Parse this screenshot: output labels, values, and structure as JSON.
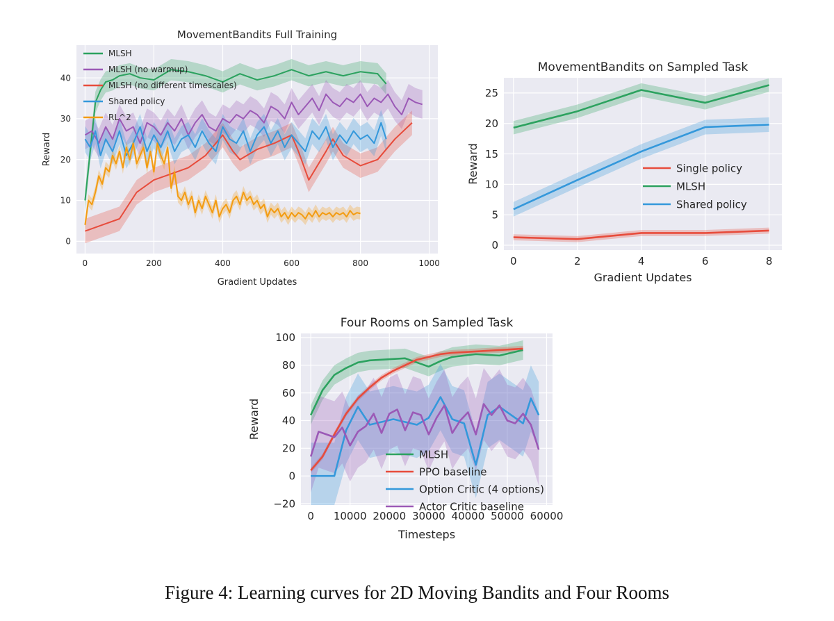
{
  "caption": "Figure 4: Learning curves for 2D Moving Bandits and Four Rooms",
  "colors": {
    "green": "#2ca25f",
    "purple": "#9b59b6",
    "red": "#e74c3c",
    "blue": "#3498db",
    "orange": "#f39c12",
    "plot_bg": "#eaeaf2",
    "grid": "#ffffff"
  },
  "chart_data": [
    {
      "type": "line",
      "title": "MovementBandits Full Training",
      "xlabel": "Gradient Updates",
      "ylabel": "Reward",
      "xlim": [
        -25,
        1025
      ],
      "ylim": [
        -3,
        48
      ],
      "xticks": [
        0,
        200,
        400,
        600,
        800,
        1000
      ],
      "yticks": [
        0,
        10,
        20,
        30,
        40
      ],
      "grid": true,
      "legend": "top-left",
      "series": [
        {
          "name": "MLSH",
          "color": "#2ca25f",
          "x": [
            0,
            15,
            30,
            45,
            60,
            80,
            100,
            130,
            160,
            200,
            250,
            300,
            350,
            400,
            450,
            500,
            550,
            600,
            650,
            700,
            750,
            800,
            850,
            875
          ],
          "y": [
            10,
            22,
            34,
            37,
            39,
            39.5,
            40.5,
            41,
            40,
            39.5,
            42,
            41.5,
            40.5,
            39,
            41,
            39.5,
            40.5,
            42,
            40.5,
            41.5,
            40.5,
            41.5,
            41,
            38.5
          ],
          "band": 2.6
        },
        {
          "name": "MLSH (no warmup)",
          "color": "#9b59b6",
          "x": [
            0,
            20,
            40,
            60,
            80,
            100,
            120,
            140,
            160,
            180,
            200,
            220,
            240,
            260,
            280,
            300,
            320,
            340,
            360,
            380,
            400,
            420,
            440,
            460,
            480,
            500,
            520,
            540,
            560,
            580,
            600,
            620,
            640,
            660,
            680,
            700,
            720,
            740,
            760,
            780,
            800,
            820,
            840,
            860,
            880,
            900,
            920,
            940,
            960,
            980
          ],
          "y": [
            26,
            27,
            24,
            28,
            25,
            30,
            27,
            28,
            24,
            29,
            28,
            26,
            29,
            27,
            30,
            26,
            29,
            31,
            28,
            27,
            30,
            29,
            31,
            30,
            32,
            31,
            29,
            33,
            32,
            30,
            34,
            31,
            33,
            35,
            32,
            36,
            34,
            33,
            35,
            34,
            36,
            33,
            35,
            34,
            36,
            33,
            31,
            35,
            34,
            33.5
          ],
          "band": 3.5
        },
        {
          "name": "MLSH (no different timescales)",
          "color": "#e74c3c",
          "x": [
            0,
            50,
            100,
            150,
            200,
            250,
            300,
            350,
            400,
            430,
            450,
            500,
            550,
            600,
            620,
            650,
            700,
            720,
            750,
            800,
            850,
            900,
            950
          ],
          "y": [
            2.5,
            4,
            5.5,
            12,
            15,
            16.5,
            18,
            21,
            26,
            22,
            20,
            22.5,
            24,
            26,
            22,
            15,
            22,
            25,
            21,
            18.5,
            20,
            25,
            29
          ],
          "band": 3
        },
        {
          "name": "Shared policy",
          "color": "#3498db",
          "x": [
            0,
            15,
            30,
            45,
            60,
            80,
            100,
            120,
            140,
            160,
            180,
            200,
            220,
            240,
            260,
            280,
            300,
            320,
            340,
            360,
            380,
            400,
            420,
            440,
            460,
            480,
            500,
            520,
            540,
            560,
            580,
            600,
            620,
            640,
            660,
            680,
            700,
            720,
            740,
            760,
            780,
            800,
            820,
            840,
            860,
            875
          ],
          "y": [
            25,
            23,
            27,
            21,
            25,
            22,
            27,
            21,
            24,
            28,
            22,
            26,
            23,
            27,
            22,
            25,
            26,
            23,
            27,
            24,
            22,
            28,
            25,
            24,
            27,
            22,
            26,
            28,
            24,
            27,
            23,
            26,
            24,
            22,
            27,
            25,
            28,
            23,
            26,
            24,
            27,
            25,
            26,
            24,
            29,
            25
          ],
          "band": 3.2
        },
        {
          "name": "RL^2",
          "color": "#f39c12",
          "x": [
            0,
            10,
            20,
            30,
            40,
            50,
            60,
            70,
            80,
            90,
            100,
            110,
            120,
            130,
            140,
            150,
            160,
            170,
            180,
            190,
            200,
            210,
            220,
            230,
            240,
            250,
            260,
            270,
            280,
            290,
            300,
            310,
            320,
            330,
            340,
            350,
            360,
            370,
            380,
            390,
            400,
            410,
            420,
            430,
            440,
            450,
            460,
            470,
            480,
            490,
            500,
            510,
            520,
            530,
            540,
            550,
            560,
            570,
            580,
            590,
            600,
            610,
            620,
            630,
            640,
            650,
            660,
            670,
            680,
            690,
            700,
            710,
            720,
            730,
            740,
            750,
            760,
            770,
            780,
            790,
            800
          ],
          "y": [
            4,
            10,
            9,
            12,
            16,
            14,
            18,
            17,
            21,
            19,
            22,
            18,
            23,
            20,
            24,
            19,
            21,
            23,
            18,
            22,
            17,
            24,
            21,
            19,
            23,
            13,
            17,
            11,
            10,
            12,
            9,
            11,
            7,
            10,
            8,
            11,
            9,
            7,
            10,
            6,
            8,
            9,
            7,
            10,
            11,
            9,
            12,
            10,
            11,
            9,
            10,
            8,
            9,
            6,
            8,
            7,
            8,
            6,
            7,
            5.5,
            7,
            6,
            7,
            6.5,
            5.5,
            7,
            6,
            7.5,
            6,
            7,
            6.5,
            7,
            6,
            7,
            6.5,
            7,
            6,
            7.5,
            6.5,
            7,
            6.8
          ],
          "band": 1.5
        }
      ]
    },
    {
      "type": "line",
      "title": "MovementBandits on Sampled Task",
      "xlabel": "Gradient Updates",
      "ylabel": "Reward",
      "xlim": [
        -0.3,
        8.4
      ],
      "ylim": [
        -0.8,
        27.5
      ],
      "xticks": [
        0,
        2,
        4,
        6,
        8
      ],
      "yticks": [
        0,
        5,
        10,
        15,
        20,
        25
      ],
      "grid": true,
      "legend": "center-right",
      "series": [
        {
          "name": "Single policy",
          "color": "#e74c3c",
          "x": [
            0,
            2,
            4,
            6,
            8
          ],
          "y": [
            1.3,
            1.0,
            2.0,
            2.0,
            2.4
          ],
          "band": 0.5
        },
        {
          "name": "MLSH",
          "color": "#2ca25f",
          "x": [
            0,
            2,
            4,
            6,
            8
          ],
          "y": [
            19.3,
            22.0,
            25.5,
            23.4,
            26.3
          ],
          "band": 1.1
        },
        {
          "name": "Shared policy",
          "color": "#3498db",
          "x": [
            0,
            2,
            4,
            6,
            8
          ],
          "y": [
            5.9,
            10.7,
            15.4,
            19.4,
            19.8
          ],
          "band": 1.2
        }
      ]
    },
    {
      "type": "line",
      "title": "Four Rooms on Sampled Task",
      "xlabel": "Timesteps",
      "ylabel": "Reward",
      "xlim": [
        -2500,
        61500
      ],
      "ylim": [
        -21,
        103
      ],
      "xticks": [
        0,
        10000,
        20000,
        30000,
        40000,
        50000,
        60000
      ],
      "yticks": [
        -20,
        0,
        20,
        40,
        60,
        80,
        100
      ],
      "grid": true,
      "legend": "lower-center",
      "series": [
        {
          "name": "MLSH",
          "color": "#2ca25f",
          "x": [
            0,
            3000,
            6000,
            9000,
            12000,
            15000,
            18000,
            21000,
            24000,
            27000,
            30000,
            33000,
            36000,
            39000,
            42000,
            45000,
            48000,
            51000,
            54000
          ],
          "y": [
            44,
            62,
            73,
            78,
            82,
            83.5,
            84,
            84.5,
            85,
            82,
            79,
            83,
            86,
            87,
            88,
            87.5,
            87,
            89,
            91
          ],
          "band": 7
        },
        {
          "name": "PPO baseline",
          "color": "#e74c3c",
          "x": [
            0,
            3000,
            6000,
            9000,
            12000,
            15000,
            18000,
            21000,
            24000,
            27000,
            30000,
            33000,
            36000,
            39000,
            42000,
            45000,
            48000,
            51000,
            54000
          ],
          "y": [
            4,
            14,
            30,
            45,
            56,
            64,
            71,
            76,
            80,
            84,
            86,
            88,
            89,
            89.5,
            90,
            90.5,
            91,
            91.5,
            92
          ],
          "band": 2
        },
        {
          "name": "Option Critic (4 options)",
          "color": "#3498db",
          "x": [
            0,
            3000,
            6000,
            9000,
            12000,
            15000,
            18000,
            21000,
            24000,
            27000,
            30000,
            33000,
            36000,
            39000,
            42000,
            45000,
            48000,
            51000,
            54000,
            56000,
            58000
          ],
          "y": [
            0,
            0,
            0,
            33,
            50,
            37,
            39,
            41,
            39,
            37,
            42,
            57,
            41,
            38,
            8,
            44,
            50,
            44,
            38,
            56,
            44
          ],
          "band": 24
        },
        {
          "name": "Actor Critic baseline",
          "color": "#9b59b6",
          "x": [
            0,
            2000,
            4000,
            6000,
            8000,
            10000,
            12000,
            14000,
            16000,
            18000,
            20000,
            22000,
            24000,
            26000,
            28000,
            30000,
            32000,
            34000,
            36000,
            38000,
            40000,
            42000,
            44000,
            46000,
            48000,
            50000,
            52000,
            54000,
            56000,
            58000
          ],
          "y": [
            14,
            32,
            30,
            28,
            35,
            22,
            32,
            36,
            45,
            31,
            45,
            48,
            33,
            46,
            44,
            30,
            42,
            51,
            31,
            40,
            46,
            30,
            52,
            44,
            51,
            40,
            38,
            45,
            37,
            19
          ],
          "band": 26
        }
      ]
    }
  ]
}
